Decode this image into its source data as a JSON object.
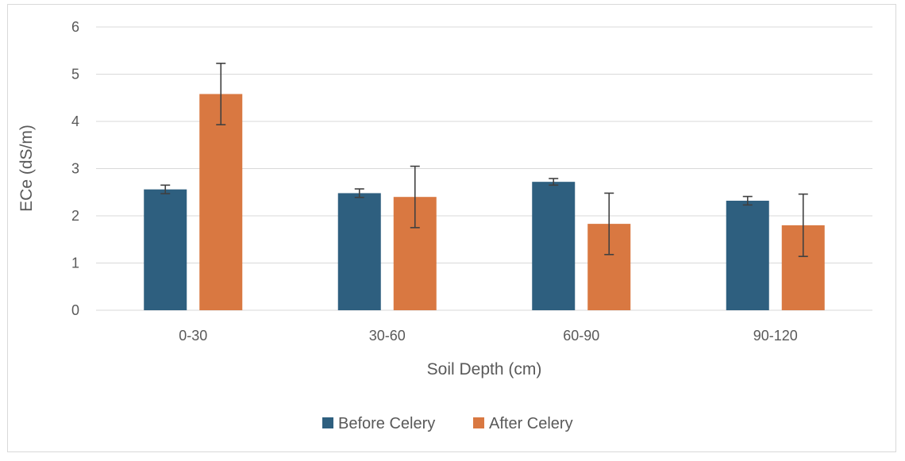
{
  "chart_data": {
    "type": "bar",
    "title": "",
    "xlabel": "Soil Depth (cm)",
    "ylabel": "ECe (dS/m)",
    "categories": [
      "0-30",
      "30-60",
      "60-90",
      "90-120"
    ],
    "ylim": [
      0,
      6
    ],
    "yticks": [
      0,
      1,
      2,
      3,
      4,
      5,
      6
    ],
    "grid": true,
    "legend_position": "bottom",
    "series": [
      {
        "name": "Before Celery",
        "color": "#2e5f7f",
        "values": [
          2.56,
          2.48,
          2.72,
          2.32
        ],
        "errors": [
          0.09,
          0.09,
          0.07,
          0.09
        ]
      },
      {
        "name": "After Celery",
        "color": "#d97841",
        "values": [
          4.58,
          2.4,
          1.83,
          1.8
        ],
        "errors": [
          0.65,
          0.65,
          0.65,
          0.66
        ]
      }
    ]
  }
}
